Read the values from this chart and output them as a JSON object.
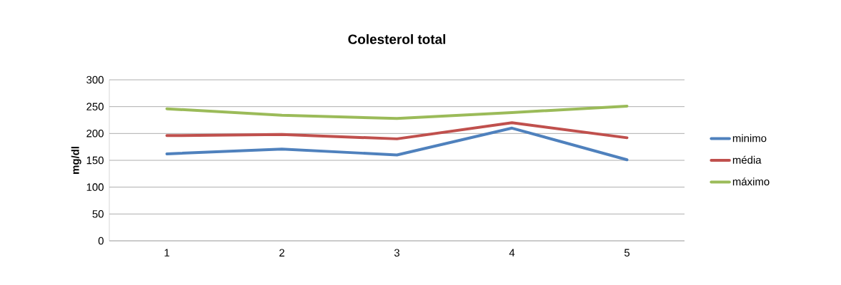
{
  "chart_data": {
    "type": "line",
    "title": "Colesterol total",
    "ylabel": "mg/dl",
    "categories": [
      "1",
      "2",
      "3",
      "4",
      "5"
    ],
    "series": [
      {
        "name": "minimo",
        "color": "#4f81bd",
        "values": [
          162,
          171,
          160,
          210,
          151
        ]
      },
      {
        "name": "média",
        "color": "#c0504d",
        "values": [
          196,
          198,
          190,
          220,
          192
        ]
      },
      {
        "name": "máximo",
        "color": "#9bbb59",
        "values": [
          246,
          234,
          228,
          239,
          251
        ]
      }
    ],
    "ylim": [
      0,
      300
    ],
    "yticks": [
      0,
      50,
      100,
      150,
      200,
      250,
      300
    ],
    "grid": "y",
    "legend": "right",
    "line_style": "solid"
  }
}
